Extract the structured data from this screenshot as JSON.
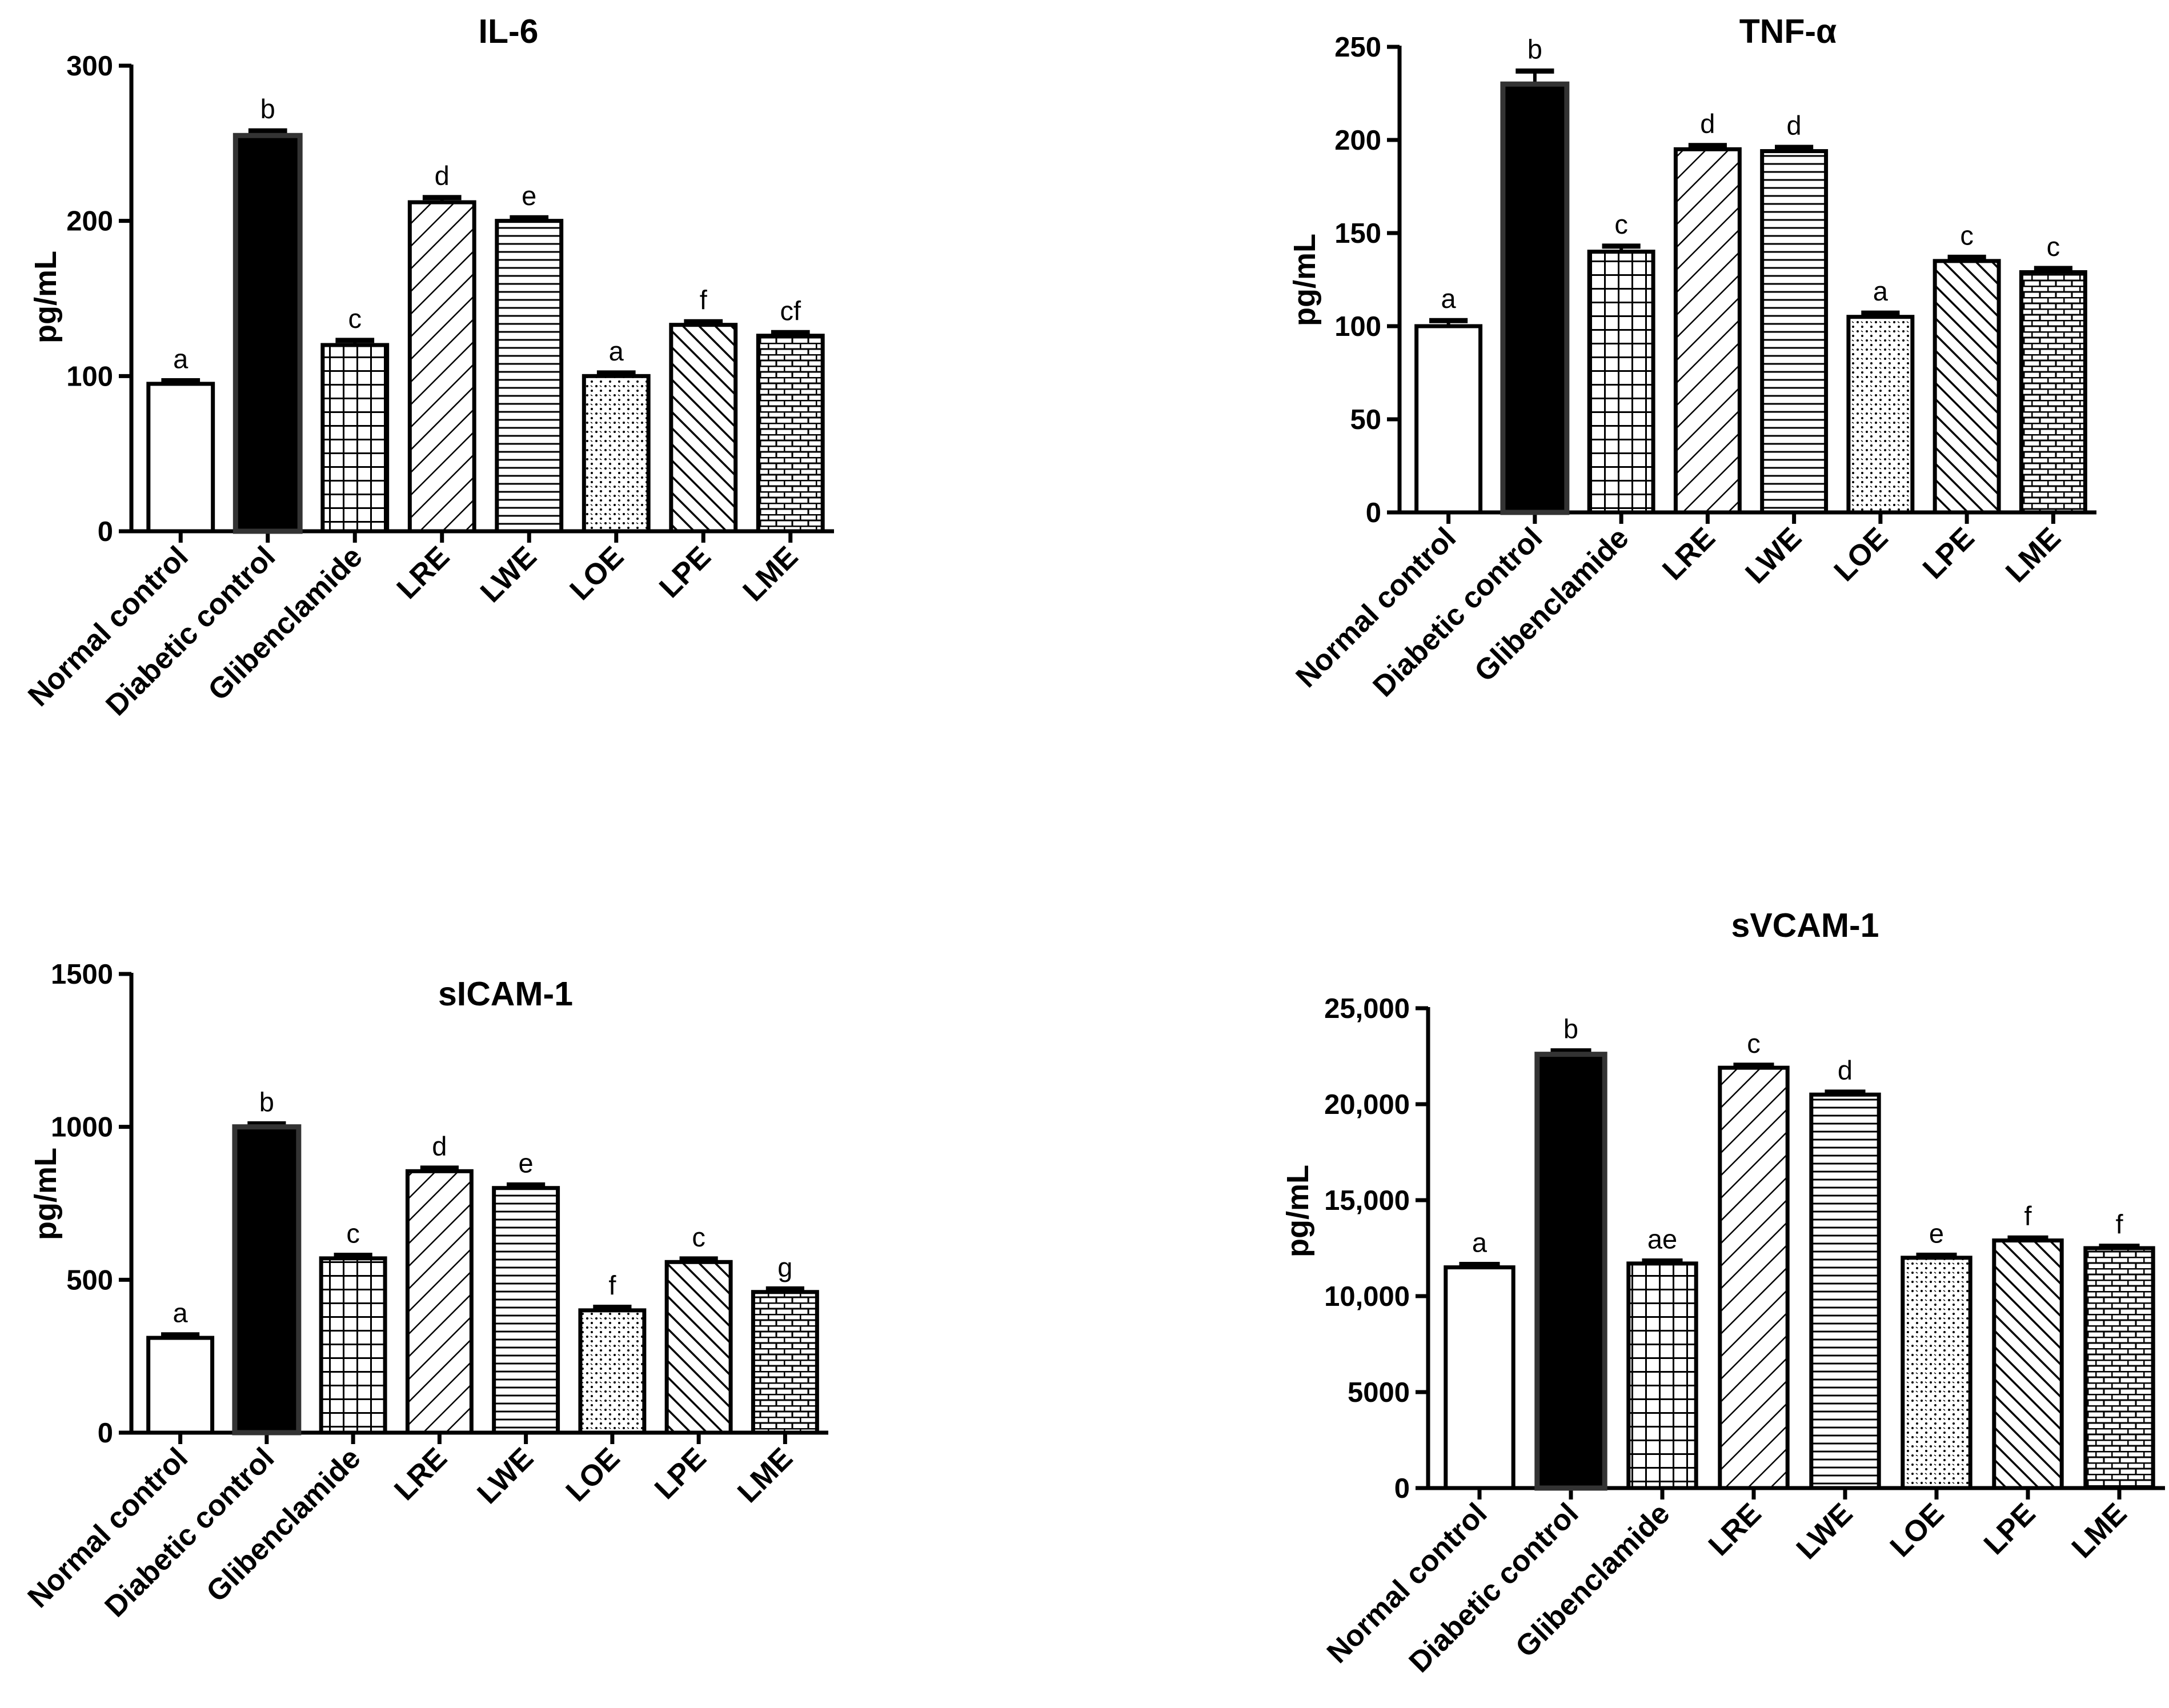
{
  "patterns": [
    "empty",
    "solid",
    "grid",
    "diag-back",
    "horizontal",
    "dots",
    "diag-fwd",
    "brick"
  ],
  "colors": {
    "bar_fill": "#ffffff",
    "bar_stroke": "#000000",
    "solid_fill": "#000000",
    "axis": "#000000",
    "background": "#ffffff"
  },
  "chart_data": [
    {
      "type": "bar",
      "title": "IL-6",
      "ylabel": "pg/mL",
      "xlabel": "",
      "ylim": [
        0,
        300
      ],
      "yticks": [
        0,
        100,
        200,
        300
      ],
      "ytick_labels": [
        "0",
        "100",
        "200",
        "300"
      ],
      "categories": [
        "Normal control",
        "Diabetic control",
        "Glibenclamide",
        "LRE",
        "LWE",
        "LOE",
        "LPE",
        "LME"
      ],
      "values": [
        95,
        255,
        120,
        212,
        200,
        100,
        133,
        126
      ],
      "errors": [
        2,
        3,
        3,
        3,
        2,
        2,
        2,
        2
      ],
      "significance_letters": [
        "a",
        "b",
        "c",
        "d",
        "e",
        "a",
        "f",
        "cf"
      ]
    },
    {
      "type": "bar",
      "title": "TNF-α",
      "ylabel": "pg/mL",
      "xlabel": "",
      "ylim": [
        0,
        250
      ],
      "yticks": [
        0,
        50,
        100,
        150,
        200,
        250
      ],
      "ytick_labels": [
        "0",
        "50",
        "100",
        "150",
        "200",
        "250"
      ],
      "categories": [
        "Normal control",
        "Diabetic control",
        "Glibenclamide",
        "LRE",
        "LWE",
        "LOE",
        "LPE",
        "LME"
      ],
      "values": [
        100,
        230,
        140,
        195,
        194,
        105,
        135,
        129
      ],
      "errors": [
        3,
        7,
        3,
        2,
        2,
        2,
        2,
        2
      ],
      "significance_letters": [
        "a",
        "b",
        "c",
        "d",
        "d",
        "a",
        "c",
        "c"
      ]
    },
    {
      "type": "bar",
      "title": "sICAM-1",
      "ylabel": "pg/mL",
      "xlabel": "",
      "ylim": [
        0,
        1500
      ],
      "yticks": [
        0,
        500,
        1000,
        1500
      ],
      "ytick_labels": [
        "0",
        "500",
        "1000",
        "1500"
      ],
      "categories": [
        "Normal control",
        "Diabetic control",
        "Glibenclamide",
        "LRE",
        "LWE",
        "LOE",
        "LPE",
        "LME"
      ],
      "values": [
        310,
        1000,
        570,
        855,
        800,
        400,
        558,
        460
      ],
      "errors": [
        10,
        10,
        10,
        10,
        10,
        10,
        10,
        10
      ],
      "significance_letters": [
        "a",
        "b",
        "c",
        "d",
        "e",
        "f",
        "c",
        "g"
      ]
    },
    {
      "type": "bar",
      "title": "sVCAM-1",
      "ylabel": "pg/mL",
      "xlabel": "",
      "ylim": [
        0,
        25000
      ],
      "yticks": [
        0,
        5000,
        10000,
        15000,
        20000,
        25000
      ],
      "ytick_labels": [
        "0",
        "5000",
        "10,000",
        "15,000",
        "20,000",
        "25,000"
      ],
      "categories": [
        "Normal control",
        "Diabetic control",
        "Glibenclamide",
        "LRE",
        "LWE",
        "LOE",
        "LPE",
        "LME"
      ],
      "values": [
        11500,
        22600,
        11700,
        21900,
        20500,
        12000,
        12900,
        12500
      ],
      "errors": [
        150,
        180,
        130,
        130,
        130,
        130,
        130,
        100
      ],
      "significance_letters": [
        "a",
        "b",
        "ae",
        "c",
        "d",
        "e",
        "f",
        "f"
      ]
    }
  ]
}
